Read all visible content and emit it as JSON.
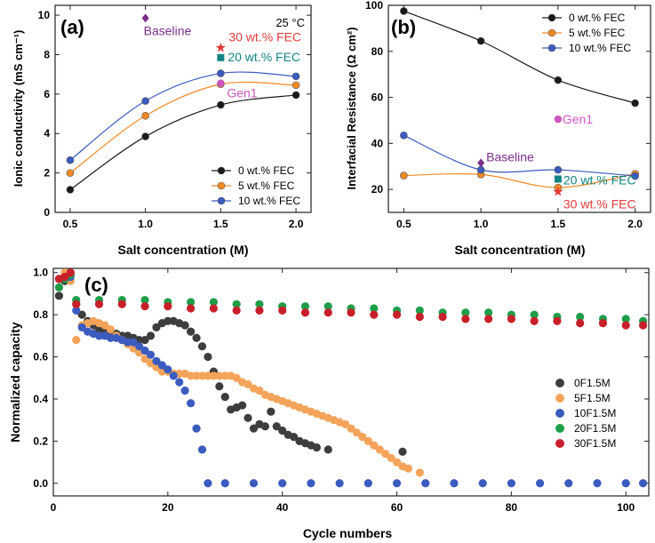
{
  "chart_data": [
    {
      "id": "a",
      "type": "line",
      "panel_label": "(a)",
      "corner_note": "25 °C",
      "xlabel": "Salt concentration (M)",
      "ylabel": "Ionic conductivity (mS cm⁻¹)",
      "xlim": [
        0.4,
        2.1
      ],
      "ylim": [
        0,
        10.5
      ],
      "xticks": [
        0.5,
        1.0,
        1.5,
        2.0
      ],
      "yticks": [
        0,
        2,
        4,
        6,
        8,
        10
      ],
      "x": [
        0.5,
        1.0,
        1.5,
        2.0
      ],
      "legend_position": "bottom-right",
      "series": [
        {
          "name": "0 wt.% FEC",
          "color": "#1a1a1a",
          "values": [
            1.15,
            3.85,
            5.45,
            5.95
          ]
        },
        {
          "name": "5 wt.% FEC",
          "color": "#f08a24",
          "values": [
            2.0,
            4.9,
            6.5,
            6.45
          ]
        },
        {
          "name": "10 wt.% FEC",
          "color": "#3b5bbf",
          "values": [
            2.65,
            5.65,
            7.05,
            6.9
          ]
        }
      ],
      "annotations": [
        {
          "label": "Baseline",
          "x": 1.0,
          "y": 9.85,
          "color": "#7a2e8a",
          "marker": "diamond"
        },
        {
          "label": "30 wt.% FEC",
          "x": 1.5,
          "y": 8.35,
          "color": "#e23b3b",
          "marker": "star"
        },
        {
          "label": "20 wt.% FEC",
          "x": 1.5,
          "y": 7.85,
          "color": "#138484",
          "marker": "square"
        },
        {
          "label": "Gen1",
          "x": 1.5,
          "y": 6.55,
          "color": "#cc55c0",
          "marker": "circle"
        }
      ]
    },
    {
      "id": "b",
      "type": "line",
      "panel_label": "(b)",
      "xlabel": "Salt concentration (M)",
      "ylabel": "Interfacial Resistance (Ω cm²)",
      "xlim": [
        0.4,
        2.1
      ],
      "ylim": [
        10,
        100
      ],
      "xticks": [
        0.5,
        1.0,
        1.5,
        2.0
      ],
      "yticks": [
        20,
        40,
        60,
        80,
        100
      ],
      "x": [
        0.5,
        1.0,
        1.5,
        2.0
      ],
      "legend_position": "top-right",
      "series": [
        {
          "name": "0 wt.% FEC",
          "color": "#1a1a1a",
          "values": [
            97.5,
            84.5,
            67.5,
            57.5
          ]
        },
        {
          "name": "5 wt.% FEC",
          "color": "#f08a24",
          "values": [
            26.0,
            26.5,
            20.8,
            26.8
          ]
        },
        {
          "name": "10 wt.% FEC",
          "color": "#3b5bbf",
          "values": [
            43.5,
            28.5,
            28.5,
            25.8
          ]
        }
      ],
      "annotations": [
        {
          "label": "Gen1",
          "x": 1.5,
          "y": 50.5,
          "color": "#cc55c0",
          "marker": "circle"
        },
        {
          "label": "Baseline",
          "x": 1.0,
          "y": 31.5,
          "color": "#7a2e8a",
          "marker": "diamond"
        },
        {
          "label": "20 wt.% FEC",
          "x": 1.5,
          "y": 24.5,
          "color": "#138484",
          "marker": "square"
        },
        {
          "label": "30 wt.% FEC",
          "x": 1.5,
          "y": 19.0,
          "color": "#e23b3b",
          "marker": "star"
        }
      ]
    },
    {
      "id": "c",
      "type": "scatter",
      "panel_label": "(c)",
      "xlabel": "Cycle numbers",
      "ylabel": "Normalized capacity",
      "xlim": [
        0,
        104
      ],
      "ylim": [
        -0.06,
        1.02
      ],
      "xticks": [
        0,
        20,
        40,
        60,
        80,
        100
      ],
      "yticks": [
        0.0,
        0.2,
        0.4,
        0.6,
        0.8,
        1.0
      ],
      "legend_position": "right",
      "series": [
        {
          "name": "0F1.5M",
          "color": "#3d3d3d",
          "x": [
            1,
            2,
            3,
            4,
            5,
            6,
            7,
            8,
            9,
            10,
            11,
            12,
            13,
            14,
            15,
            16,
            17,
            18,
            19,
            20,
            21,
            22,
            23,
            24,
            25,
            26,
            27,
            28,
            29,
            30,
            31,
            32,
            33,
            34,
            35,
            36,
            37,
            38,
            39,
            40,
            41,
            42,
            43,
            44,
            45,
            46,
            48,
            61
          ],
          "y": [
            0.89,
            0.96,
            1.0,
            0.85,
            0.8,
            0.77,
            0.75,
            0.73,
            0.72,
            0.71,
            0.71,
            0.7,
            0.7,
            0.69,
            0.68,
            0.68,
            0.7,
            0.74,
            0.76,
            0.77,
            0.77,
            0.76,
            0.75,
            0.72,
            0.69,
            0.65,
            0.6,
            0.53,
            0.46,
            0.41,
            0.35,
            0.36,
            0.37,
            0.31,
            0.26,
            0.28,
            0.27,
            0.34,
            0.27,
            0.25,
            0.23,
            0.22,
            0.2,
            0.19,
            0.18,
            0.17,
            0.16,
            0.15
          ]
        },
        {
          "name": "5F1.5M",
          "color": "#f4a45a",
          "x": [
            1,
            2,
            3,
            4,
            5,
            6,
            7,
            8,
            9,
            10,
            11,
            12,
            13,
            14,
            15,
            16,
            17,
            18,
            19,
            20,
            21,
            22,
            23,
            24,
            25,
            26,
            27,
            28,
            29,
            30,
            31,
            32,
            33,
            34,
            35,
            36,
            37,
            38,
            39,
            40,
            41,
            42,
            43,
            44,
            45,
            46,
            47,
            48,
            49,
            50,
            51,
            52,
            53,
            54,
            55,
            56,
            57,
            58,
            59,
            60,
            61,
            62,
            64
          ],
          "y": [
            0.97,
            1.0,
            0.96,
            0.68,
            0.75,
            0.76,
            0.77,
            0.76,
            0.75,
            0.73,
            0.7,
            0.68,
            0.66,
            0.64,
            0.62,
            0.59,
            0.57,
            0.55,
            0.53,
            0.53,
            0.52,
            0.52,
            0.52,
            0.51,
            0.51,
            0.51,
            0.51,
            0.51,
            0.51,
            0.51,
            0.51,
            0.5,
            0.48,
            0.47,
            0.45,
            0.44,
            0.42,
            0.41,
            0.4,
            0.39,
            0.38,
            0.37,
            0.36,
            0.35,
            0.34,
            0.33,
            0.32,
            0.31,
            0.3,
            0.29,
            0.28,
            0.26,
            0.24,
            0.22,
            0.2,
            0.18,
            0.16,
            0.14,
            0.12,
            0.1,
            0.08,
            0.07,
            0.05
          ]
        },
        {
          "name": "10F1.5M",
          "color": "#3b5bbf",
          "x": [
            1,
            2,
            3,
            4,
            5,
            6,
            7,
            8,
            9,
            10,
            11,
            12,
            13,
            14,
            15,
            16,
            17,
            18,
            19,
            20,
            21,
            22,
            23,
            24,
            25,
            26,
            27,
            30,
            35,
            40,
            45,
            50,
            55,
            60,
            65,
            70,
            75,
            80,
            85,
            90,
            95,
            100,
            103
          ],
          "y": [
            0.97,
            0.97,
            0.98,
            0.82,
            0.74,
            0.72,
            0.71,
            0.7,
            0.7,
            0.69,
            0.69,
            0.68,
            0.67,
            0.67,
            0.65,
            0.63,
            0.61,
            0.58,
            0.56,
            0.54,
            0.51,
            0.48,
            0.44,
            0.38,
            0.26,
            0.16,
            0.0,
            0.0,
            0.0,
            0.0,
            0.0,
            0.0,
            0.0,
            0.0,
            0.0,
            0.0,
            0.0,
            0.0,
            0.0,
            0.0,
            0.0,
            0.0,
            0.0
          ]
        },
        {
          "name": "20F1.5M",
          "color": "#1f9e4a",
          "x": [
            1,
            2,
            3,
            4,
            8,
            12,
            16,
            20,
            24,
            28,
            32,
            36,
            40,
            44,
            48,
            52,
            56,
            60,
            64,
            68,
            72,
            76,
            80,
            84,
            88,
            92,
            96,
            100,
            103
          ],
          "y": [
            0.93,
            0.97,
            0.99,
            0.87,
            0.87,
            0.87,
            0.87,
            0.86,
            0.86,
            0.86,
            0.85,
            0.85,
            0.84,
            0.84,
            0.84,
            0.83,
            0.83,
            0.82,
            0.82,
            0.81,
            0.81,
            0.81,
            0.8,
            0.8,
            0.79,
            0.79,
            0.78,
            0.78,
            0.77
          ]
        },
        {
          "name": "30F1.5M",
          "color": "#c8202a",
          "x": [
            1,
            2,
            3,
            4,
            8,
            12,
            16,
            20,
            24,
            28,
            32,
            36,
            40,
            44,
            48,
            52,
            56,
            60,
            64,
            68,
            72,
            76,
            80,
            84,
            88,
            92,
            96,
            100,
            103
          ],
          "y": [
            0.97,
            0.98,
            1.0,
            0.85,
            0.85,
            0.85,
            0.84,
            0.84,
            0.83,
            0.83,
            0.82,
            0.82,
            0.82,
            0.81,
            0.81,
            0.81,
            0.8,
            0.8,
            0.79,
            0.79,
            0.78,
            0.78,
            0.78,
            0.77,
            0.77,
            0.76,
            0.76,
            0.75,
            0.75
          ]
        }
      ]
    }
  ]
}
